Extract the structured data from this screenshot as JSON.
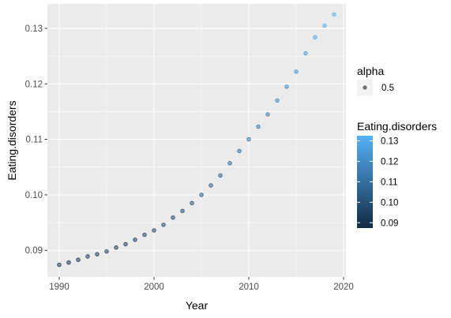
{
  "chart_data": {
    "type": "scatter",
    "title": "",
    "xlabel": "Year",
    "ylabel": "Eating.disorders",
    "xlim": [
      1988.75,
      2020.25
    ],
    "ylim": [
      0.0852,
      0.1344
    ],
    "x_ticks": [
      "1990",
      "2000",
      "2010",
      "2020"
    ],
    "y_ticks": [
      "0.09",
      "0.10",
      "0.11",
      "0.12",
      "0.13"
    ],
    "grid": true,
    "panel_background": "#ebebeb",
    "color_low": "#132b43",
    "color_high": "#56b1f7",
    "point_alpha": 0.5,
    "x": [
      1990,
      1991,
      1992,
      1993,
      1994,
      1995,
      1996,
      1997,
      1998,
      1999,
      2000,
      2001,
      2002,
      2003,
      2004,
      2005,
      2006,
      2007,
      2008,
      2009,
      2010,
      2011,
      2012,
      2013,
      2014,
      2015,
      2016,
      2017,
      2018,
      2019
    ],
    "y": [
      0.0874,
      0.0878,
      0.0883,
      0.0889,
      0.0893,
      0.0898,
      0.0905,
      0.0911,
      0.0919,
      0.0928,
      0.0936,
      0.0946,
      0.0959,
      0.0971,
      0.0985,
      0.1,
      0.1017,
      0.1035,
      0.1057,
      0.1079,
      0.11,
      0.1123,
      0.1145,
      0.117,
      0.1195,
      0.1222,
      0.1255,
      0.1284,
      0.1305,
      0.1325
    ],
    "legend": {
      "placement": "right",
      "alpha": {
        "title": "alpha",
        "label": "0.5"
      },
      "color": {
        "title": "Eating.disorders",
        "labels": [
          "0.13",
          "0.12",
          "0.11",
          "0.10",
          "0.09"
        ],
        "range": [
          0.0874,
          0.1325
        ]
      }
    }
  }
}
